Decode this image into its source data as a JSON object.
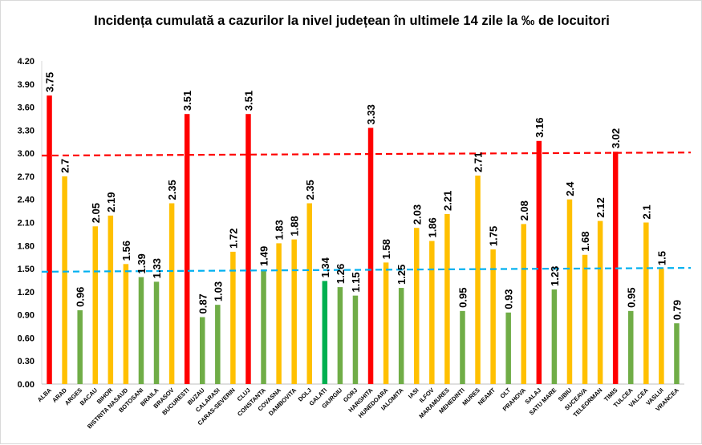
{
  "chart_data": {
    "type": "bar",
    "title": "Incidența cumulată a cazurilor la nivel județean în ultimele 14 zile la ‰ de locuitori",
    "xlabel": "",
    "ylabel": "",
    "ylim": [
      0,
      4.2
    ],
    "y_ticks": [
      "0.00",
      "0.30",
      "0.60",
      "0.90",
      "1.20",
      "1.50",
      "1.80",
      "2.10",
      "2.40",
      "2.70",
      "3.00",
      "3.30",
      "3.60",
      "3.90",
      "4.20"
    ],
    "grid": false,
    "legend": "none",
    "categories": [
      "ALBA",
      "ARAD",
      "ARGES",
      "BACAU",
      "BIHOR",
      "BISTRITA NASAUD",
      "BOTOSANI",
      "BRAILA",
      "BRASOV",
      "BUCURESTI",
      "BUZAU",
      "CALARASI",
      "CARAS-SEVERIN",
      "CLUJ",
      "CONSTANTA",
      "COVASNA",
      "DAMBOVITA",
      "DOLJ",
      "GALATI",
      "GIURGIU",
      "GORJ",
      "HARGHITA",
      "HUNEDOARA",
      "IALOMITA",
      "IASI",
      "ILFOV",
      "MARAMURES",
      "MEHEDINTI",
      "MURES",
      "NEAMT",
      "OLT",
      "PRAHOVA",
      "SALAJ",
      "SATU MARE",
      "SIBIU",
      "SUCEAVA",
      "TELEORMAN",
      "TIMIS",
      "TULCEA",
      "VALCEA",
      "VASLUI",
      "VRANCEA"
    ],
    "values": [
      3.75,
      2.7,
      0.96,
      2.05,
      2.19,
      1.56,
      1.39,
      1.33,
      2.35,
      3.51,
      0.87,
      1.03,
      1.72,
      3.51,
      1.49,
      1.83,
      1.88,
      2.35,
      1.34,
      1.26,
      1.15,
      3.33,
      1.58,
      1.25,
      2.03,
      1.86,
      2.21,
      0.95,
      2.71,
      1.75,
      0.93,
      2.08,
      3.16,
      1.23,
      2.4,
      1.68,
      2.12,
      3.02,
      0.95,
      2.1,
      1.5,
      0.79
    ],
    "value_labels": [
      "3.75",
      "2.7",
      "0.96",
      "2.05",
      "2.19",
      "1.56",
      "1.39",
      "1.33",
      "2.35",
      "3.51",
      "0.87",
      "1.03",
      "1.72",
      "3.51",
      "1.49",
      "1.83",
      "1.88",
      "2.35",
      "1.34",
      "1.26",
      "1.15",
      "3.33",
      "1.58",
      "1.25",
      "2.03",
      "1.86",
      "2.21",
      "0.95",
      "2.71",
      "1.75",
      "0.93",
      "2.08",
      "3.16",
      "1.23",
      "2.4",
      "1.68",
      "2.12",
      "3.02",
      "0.95",
      "2.1",
      "1.5",
      "0.79"
    ],
    "bar_colors": [
      "#ff0000",
      "#ffc000",
      "#70ad47",
      "#ffc000",
      "#ffc000",
      "#ffc000",
      "#70ad47",
      "#70ad47",
      "#ffc000",
      "#ff0000",
      "#70ad47",
      "#70ad47",
      "#ffc000",
      "#ff0000",
      "#70ad47",
      "#ffc000",
      "#ffc000",
      "#ffc000",
      "#00b050",
      "#70ad47",
      "#70ad47",
      "#ff0000",
      "#ffc000",
      "#70ad47",
      "#ffc000",
      "#ffc000",
      "#ffc000",
      "#70ad47",
      "#ffc000",
      "#ffc000",
      "#70ad47",
      "#ffc000",
      "#ff0000",
      "#70ad47",
      "#ffc000",
      "#ffc000",
      "#ffc000",
      "#ff0000",
      "#70ad47",
      "#ffc000",
      "#ffc000",
      "#70ad47"
    ],
    "reference_lines": [
      {
        "y_start": 2.97,
        "y_end": 3.01,
        "color": "#ff0000",
        "style": "dashed"
      },
      {
        "y_start": 1.46,
        "y_end": 1.51,
        "color": "#00b0f0",
        "style": "dashed"
      }
    ]
  }
}
